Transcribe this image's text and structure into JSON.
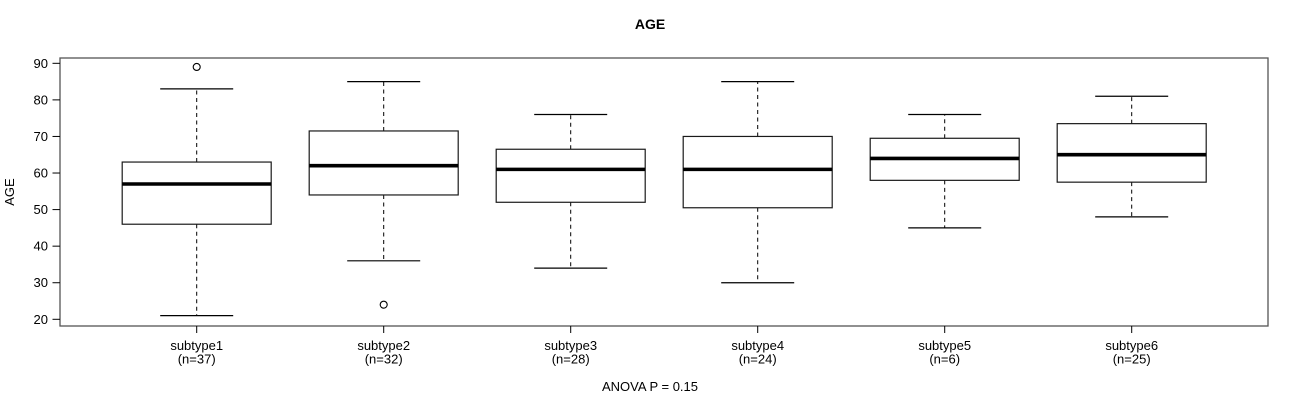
{
  "chart_data": {
    "type": "boxplot",
    "title": "AGE",
    "ylabel": "AGE",
    "footer": "ANOVA P = 0.15",
    "ylim": [
      20,
      90
    ],
    "yticks": [
      20,
      30,
      40,
      50,
      60,
      70,
      80,
      90
    ],
    "grid": false,
    "legend": "none",
    "series": [
      {
        "label": "subtype1",
        "n_label": "(n=37)",
        "whisker_low": 21,
        "q1": 46,
        "median": 57,
        "q3": 63,
        "whisker_high": 83,
        "outliers": [
          89
        ]
      },
      {
        "label": "subtype2",
        "n_label": "(n=32)",
        "whisker_low": 36,
        "q1": 54,
        "median": 62,
        "q3": 71.5,
        "whisker_high": 85,
        "outliers": [
          24
        ]
      },
      {
        "label": "subtype3",
        "n_label": "(n=28)",
        "whisker_low": 34,
        "q1": 52,
        "median": 61,
        "q3": 66.5,
        "whisker_high": 76,
        "outliers": []
      },
      {
        "label": "subtype4",
        "n_label": "(n=24)",
        "whisker_low": 30,
        "q1": 50.5,
        "median": 61,
        "q3": 70,
        "whisker_high": 85,
        "outliers": []
      },
      {
        "label": "subtype5",
        "n_label": "(n=6)",
        "whisker_low": 45,
        "q1": 58,
        "median": 64,
        "q3": 69.5,
        "whisker_high": 76,
        "outliers": []
      },
      {
        "label": "subtype6",
        "n_label": "(n=25)",
        "whisker_low": 48,
        "q1": 57.5,
        "median": 65,
        "q3": 73.5,
        "whisker_high": 81,
        "outliers": []
      }
    ],
    "colors": {
      "line": "#000000",
      "border": "#555555",
      "background": "#ffffff",
      "box_fill": "#ffffff"
    }
  }
}
